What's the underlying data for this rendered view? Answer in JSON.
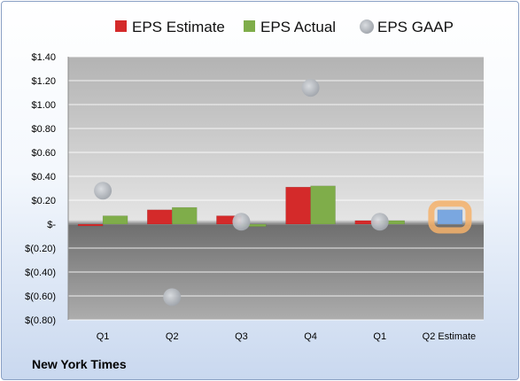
{
  "chart_data": {
    "type": "bar",
    "title": "",
    "xlabel": "",
    "ylabel": "",
    "categories": [
      "Q1",
      "Q2",
      "Q3",
      "Q4",
      "Q1",
      "Q2 Estimate"
    ],
    "ylim": [
      -0.8,
      1.4
    ],
    "yticks": [
      1.4,
      1.2,
      1.0,
      0.8,
      0.6,
      0.4,
      0.2,
      0,
      -0.2,
      -0.4,
      -0.6,
      -0.8
    ],
    "ytick_labels": [
      "$1.40",
      "$1.20",
      "$1.00",
      "$0.80",
      "$0.60",
      "$0.40",
      "$0.20",
      "$-",
      "$(0.20)",
      "$(0.40)",
      "$(0.60)",
      "$(0.80)"
    ],
    "grid": true,
    "legend_position": "top",
    "series": [
      {
        "name": "EPS Estimate",
        "type": "bar",
        "color": "#d42a2a",
        "values": [
          -0.01,
          0.12,
          0.07,
          0.31,
          0.03,
          null
        ]
      },
      {
        "name": "EPS Actual",
        "type": "bar",
        "color": "#7fad4a",
        "values": [
          0.07,
          0.14,
          -0.02,
          0.32,
          0.03,
          0.12
        ]
      },
      {
        "name": "EPS GAAP",
        "type": "scatter",
        "color": "#b9bec6",
        "values": [
          0.28,
          -0.61,
          0.02,
          1.14,
          0.02,
          null
        ]
      }
    ],
    "highlight": {
      "category_index": 5,
      "bar_color": "#7aa7e0",
      "glow_color": "#f5b26b"
    }
  },
  "footer": {
    "company": "New York Times"
  }
}
